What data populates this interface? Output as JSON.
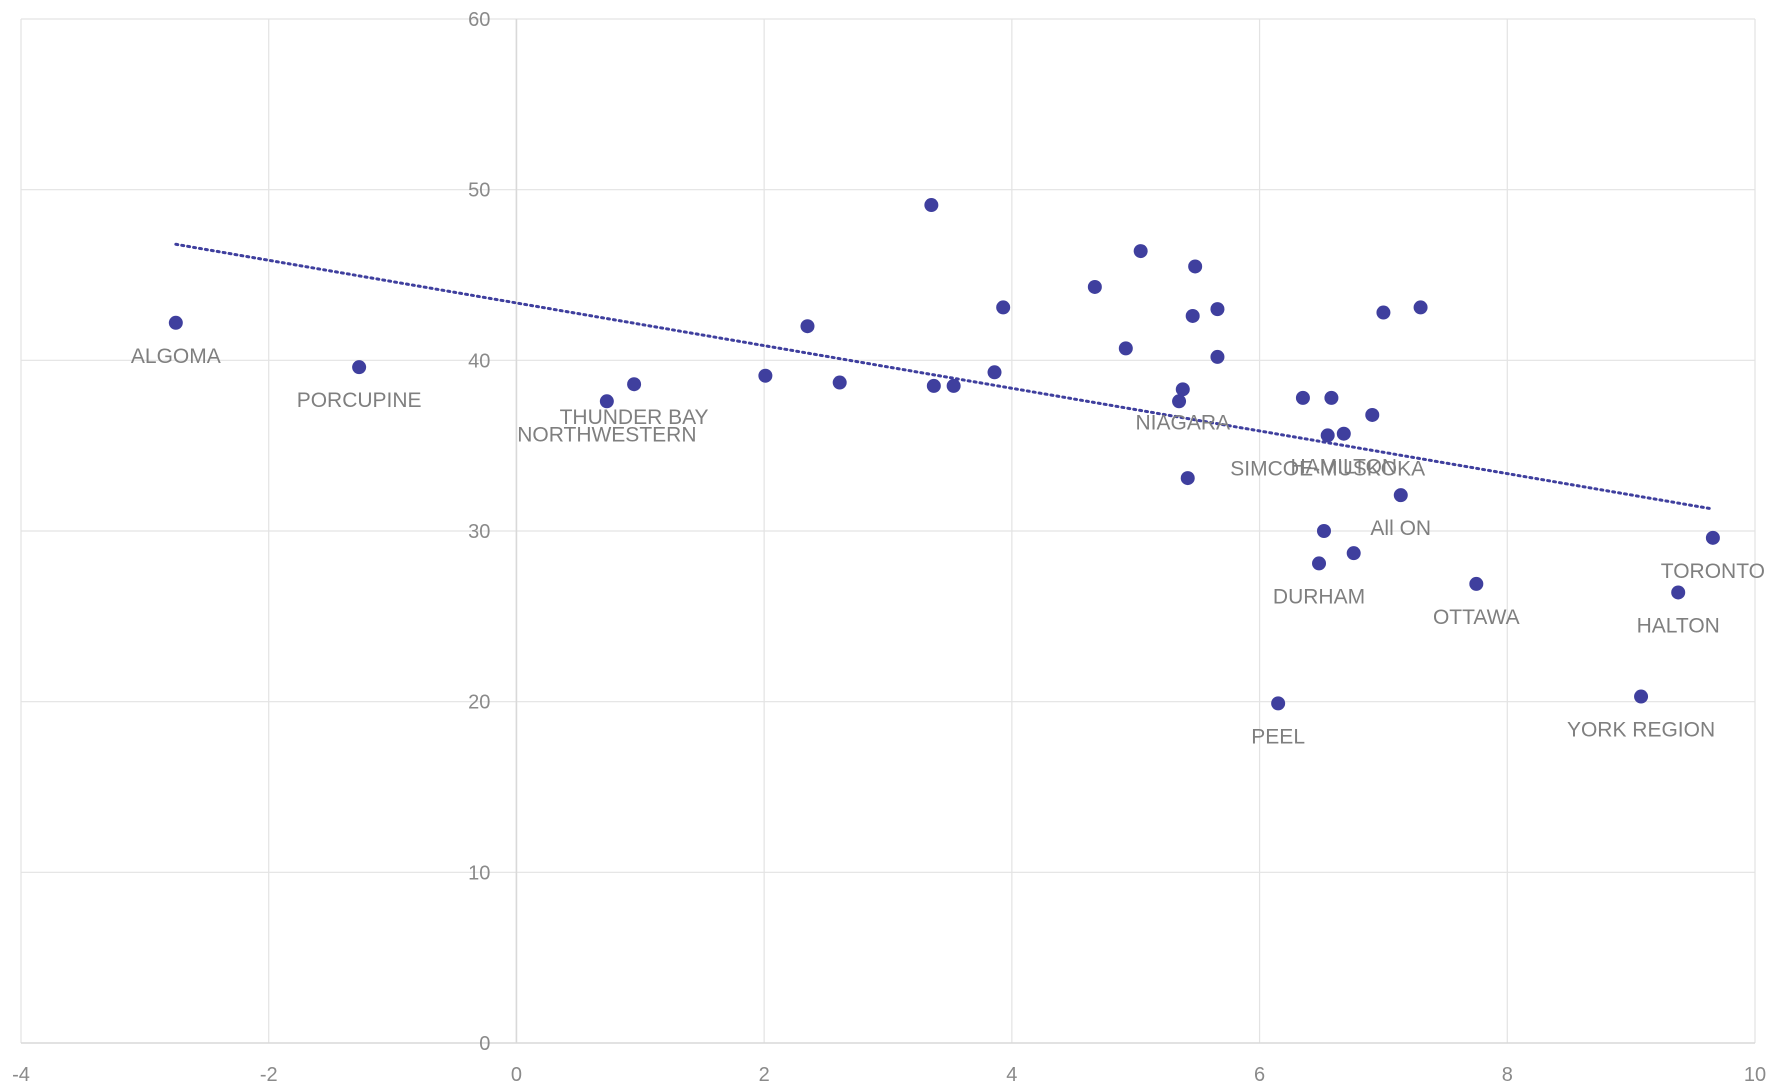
{
  "chart_data": {
    "type": "scatter",
    "title": "",
    "xlabel": "",
    "ylabel": "",
    "xlim": [
      -4,
      10
    ],
    "ylim": [
      0,
      60
    ],
    "x_ticks": [
      -4,
      -2,
      0,
      2,
      4,
      6,
      8,
      10
    ],
    "y_ticks": [
      0,
      10,
      20,
      30,
      40,
      50,
      60
    ],
    "grid": true,
    "legend": "none",
    "colors": {
      "marker": "#3f3f9e",
      "trendline": "#3f3f9e",
      "grid": "#e3e3e3",
      "axis": "#d9d9d9",
      "text": "#8a8a8a"
    },
    "trendline": {
      "style": "dotted",
      "x": [
        -2.75,
        9.65
      ],
      "y": [
        46.8,
        31.3
      ]
    },
    "points": [
      {
        "x": -2.75,
        "y": 42.2,
        "label": "ALGOMA"
      },
      {
        "x": -1.27,
        "y": 39.6,
        "label": "PORCUPINE"
      },
      {
        "x": 0.73,
        "y": 37.6,
        "label": "NORTHWESTERN"
      },
      {
        "x": 0.95,
        "y": 38.6,
        "label": "THUNDER BAY"
      },
      {
        "x": 2.01,
        "y": 39.1,
        "label": ""
      },
      {
        "x": 2.35,
        "y": 42.0,
        "label": ""
      },
      {
        "x": 2.61,
        "y": 38.7,
        "label": ""
      },
      {
        "x": 3.35,
        "y": 49.1,
        "label": ""
      },
      {
        "x": 3.37,
        "y": 38.5,
        "label": ""
      },
      {
        "x": 3.53,
        "y": 38.5,
        "label": ""
      },
      {
        "x": 3.86,
        "y": 39.3,
        "label": ""
      },
      {
        "x": 3.93,
        "y": 43.1,
        "label": ""
      },
      {
        "x": 4.67,
        "y": 44.3,
        "label": ""
      },
      {
        "x": 4.92,
        "y": 40.7,
        "label": ""
      },
      {
        "x": 5.04,
        "y": 46.4,
        "label": ""
      },
      {
        "x": 5.35,
        "y": 37.6,
        "label": ""
      },
      {
        "x": 5.38,
        "y": 38.3,
        "label": "NIAGARA"
      },
      {
        "x": 5.42,
        "y": 33.1,
        "label": ""
      },
      {
        "x": 5.46,
        "y": 42.6,
        "label": ""
      },
      {
        "x": 5.48,
        "y": 45.5,
        "label": ""
      },
      {
        "x": 5.66,
        "y": 43.0,
        "label": ""
      },
      {
        "x": 5.66,
        "y": 40.2,
        "label": ""
      },
      {
        "x": 6.15,
        "y": 19.9,
        "label": "PEEL"
      },
      {
        "x": 6.35,
        "y": 37.8,
        "label": ""
      },
      {
        "x": 6.48,
        "y": 28.1,
        "label": "DURHAM"
      },
      {
        "x": 6.52,
        "y": 30.0,
        "label": ""
      },
      {
        "x": 6.55,
        "y": 35.6,
        "label": "SIMCOE-MUSKOKA"
      },
      {
        "x": 6.58,
        "y": 37.8,
        "label": ""
      },
      {
        "x": 6.68,
        "y": 35.7,
        "label": "HAMILTON"
      },
      {
        "x": 6.76,
        "y": 28.7,
        "label": ""
      },
      {
        "x": 6.91,
        "y": 36.8,
        "label": ""
      },
      {
        "x": 7.0,
        "y": 42.8,
        "label": ""
      },
      {
        "x": 7.14,
        "y": 32.1,
        "label": "All ON"
      },
      {
        "x": 7.3,
        "y": 43.1,
        "label": ""
      },
      {
        "x": 7.75,
        "y": 26.9,
        "label": "OTTAWA"
      },
      {
        "x": 9.08,
        "y": 20.3,
        "label": "YORK REGION"
      },
      {
        "x": 9.38,
        "y": 26.4,
        "label": "HALTON"
      },
      {
        "x": 9.66,
        "y": 29.6,
        "label": "TORONTO"
      }
    ]
  }
}
